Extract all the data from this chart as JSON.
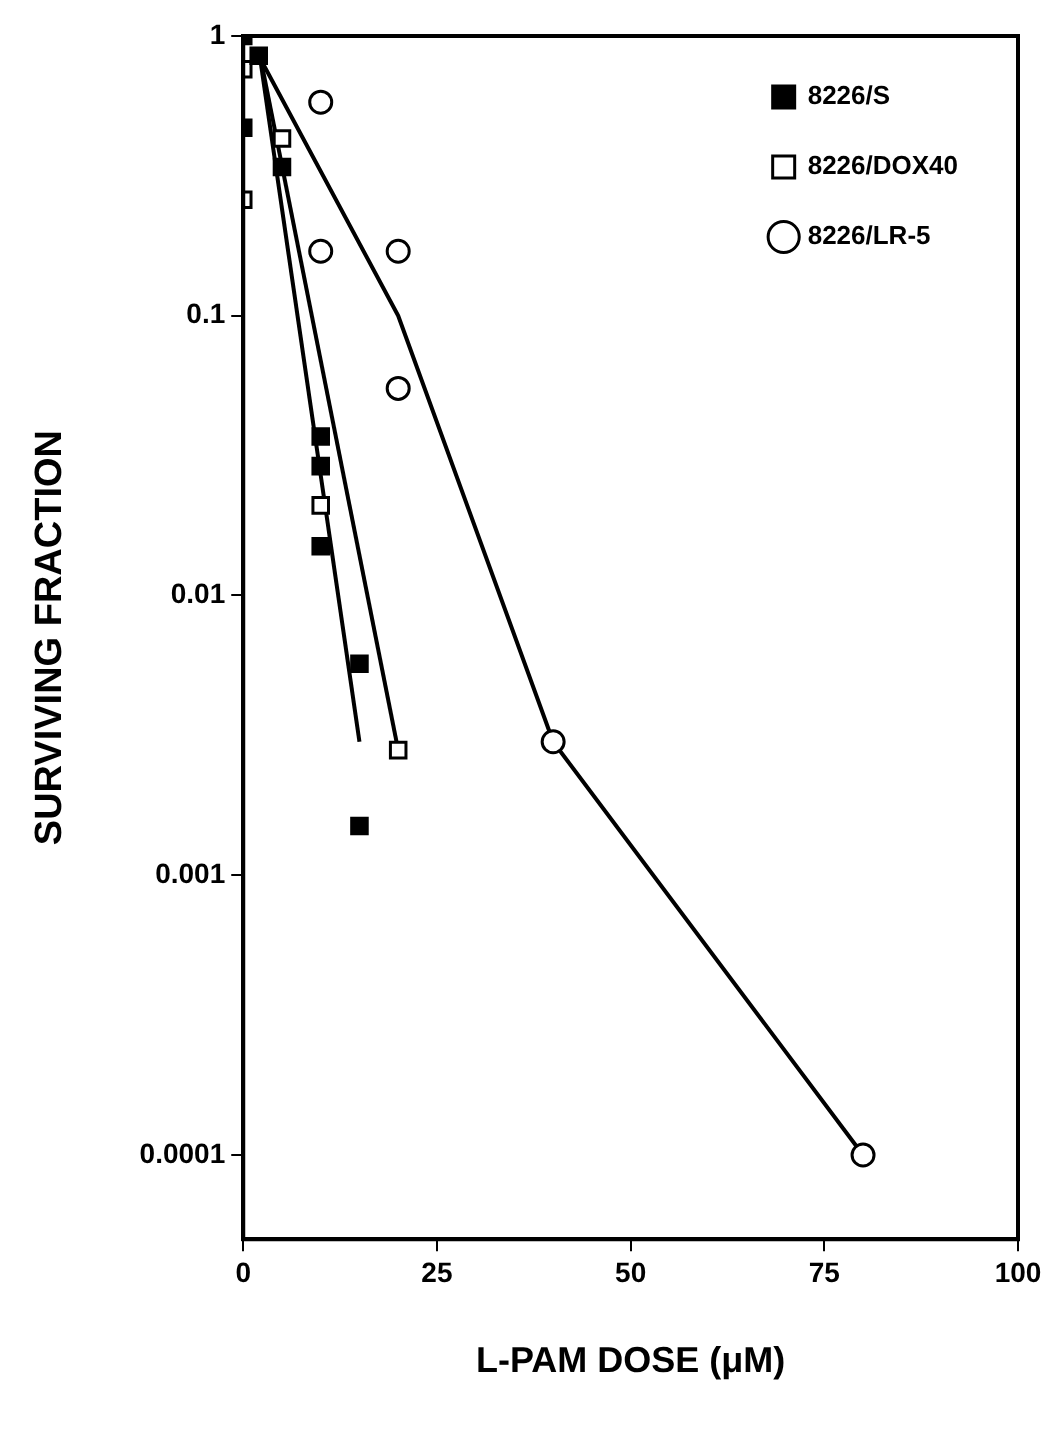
{
  "chart_data": {
    "type": "scatter",
    "xlabel": "L-PAM DOSE (μM)",
    "ylabel": "SURVIVING FRACTION",
    "log": "y",
    "xlim": [
      0,
      100
    ],
    "xticks": [
      0,
      25,
      50,
      75,
      100
    ],
    "ylim": [
      5e-05,
      1
    ],
    "yticks": [
      1,
      0.1,
      0.01,
      0.001,
      0.0001
    ],
    "grid": false,
    "legend": "top right",
    "series": [
      {
        "name": "8226/S",
        "color": "#000000",
        "marker": "square",
        "x": [
          0,
          0,
          2,
          5,
          10,
          10,
          10,
          15,
          15
        ],
        "values": [
          1,
          0.47,
          0.85,
          0.34,
          0.037,
          0.029,
          0.015,
          0.0057,
          0.0015
        ]
      },
      {
        "name": "8226/DOX40",
        "color": "#ffffff",
        "marker": "square",
        "x": [
          0,
          0,
          5,
          10,
          20
        ],
        "values": [
          0.76,
          0.26,
          0.43,
          0.021,
          0.0028
        ]
      },
      {
        "name": "8226/LR-5",
        "color": "#ffffff",
        "marker": "circle",
        "x": [
          10,
          10,
          20,
          20,
          40,
          80
        ],
        "values": [
          0.58,
          0.17,
          0.17,
          0.055,
          0.003,
          0.0001
        ]
      },
      {
        "type": "line",
        "color": "#000000",
        "marker": "none",
        "line_style": "solid",
        "x": [
          2,
          15
        ],
        "values": [
          0.9,
          0.003
        ]
      },
      {
        "type": "line",
        "color": "#000000",
        "marker": "none",
        "line_style": "solid",
        "x": [
          2,
          20
        ],
        "values": [
          0.9,
          0.0028
        ]
      },
      {
        "type": "line",
        "color": "#000000",
        "marker": "none",
        "line_style": "solid",
        "x": [
          2,
          20,
          40,
          80
        ],
        "values": [
          0.85,
          0.1,
          0.003,
          0.0001
        ]
      }
    ]
  }
}
